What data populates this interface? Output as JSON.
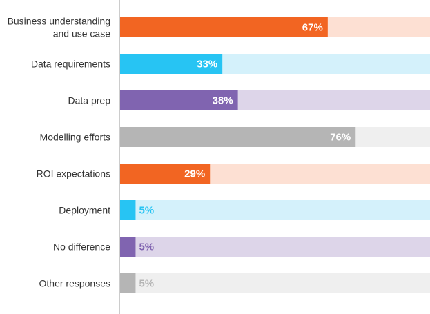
{
  "chart_data": {
    "type": "bar",
    "orientation": "horizontal",
    "categories": [
      [
        "Business understanding",
        "and use case"
      ],
      [
        "Data requirements"
      ],
      [
        "Data prep"
      ],
      [
        "Modelling efforts"
      ],
      [
        "ROI expectations"
      ],
      [
        "Deployment"
      ],
      [
        "No difference"
      ],
      [
        "Other responses"
      ]
    ],
    "values": [
      67,
      33,
      38,
      76,
      29,
      5,
      5,
      5
    ],
    "value_labels": [
      "67%",
      "33%",
      "38%",
      "76%",
      "29%",
      "5%",
      "5%",
      "5%"
    ],
    "colors": [
      "#f26522",
      "#27c4f3",
      "#8064b0",
      "#b5b5b5",
      "#f26522",
      "#27c4f3",
      "#8064b0",
      "#b5b5b5"
    ],
    "track_colors": [
      "#fde0d3",
      "#d4f1fb",
      "#ddd5e9",
      "#efefef",
      "#fde0d3",
      "#d4f1fb",
      "#ddd5e9",
      "#efefef"
    ],
    "xlim": [
      0,
      100
    ],
    "axis_color": "#cccccc"
  }
}
